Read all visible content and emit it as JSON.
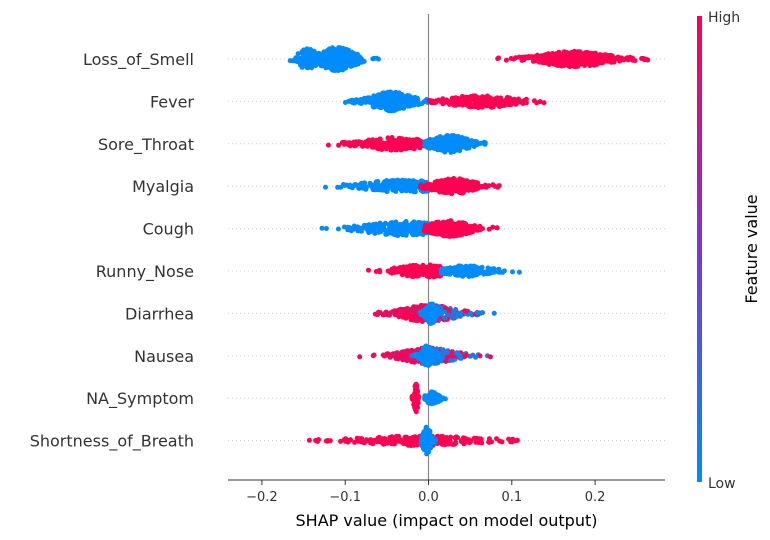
{
  "chart_data": {
    "type": "scatter",
    "subtype": "shap-beeswarm",
    "title": "",
    "xlabel": "SHAP value (impact on model output)",
    "ylabel": "",
    "xlim": [
      -0.24,
      0.27
    ],
    "xticks": [
      -0.2,
      -0.1,
      0.0,
      0.1,
      0.2
    ],
    "xtick_labels": [
      "−0.2",
      "−0.1",
      "0.0",
      "0.1",
      "0.2"
    ],
    "grid": false,
    "zero_line": true,
    "colorbar": {
      "label": "Feature value",
      "high_label": "High",
      "low_label": "Low",
      "high_color": "#ff0052",
      "low_color": "#008bfb"
    },
    "features": [
      {
        "name": "Loss_of_Smell",
        "groups": [
          {
            "level": "low",
            "center": -0.11,
            "sd": 0.018,
            "min": -0.22,
            "max": -0.06,
            "weight": 0.7,
            "n": 380
          },
          {
            "level": "low",
            "center": -0.145,
            "sd": 0.01,
            "min": -0.18,
            "max": -0.12,
            "weight": 0.6,
            "n": 90
          },
          {
            "level": "high",
            "center": 0.175,
            "sd": 0.032,
            "min": 0.07,
            "max": 0.265,
            "weight": 0.45,
            "n": 420
          }
        ]
      },
      {
        "name": "Fever",
        "groups": [
          {
            "level": "low",
            "center": -0.045,
            "sd": 0.02,
            "min": -0.135,
            "max": 0.0,
            "weight": 0.55,
            "n": 260
          },
          {
            "level": "high",
            "center": 0.065,
            "sd": 0.03,
            "min": 0.0,
            "max": 0.16,
            "weight": 0.35,
            "n": 230
          }
        ]
      },
      {
        "name": "Sore_Throat",
        "groups": [
          {
            "level": "high",
            "center": -0.04,
            "sd": 0.03,
            "min": -0.135,
            "max": 0.02,
            "weight": 0.35,
            "n": 210
          },
          {
            "level": "low",
            "center": 0.025,
            "sd": 0.018,
            "min": -0.005,
            "max": 0.08,
            "weight": 0.5,
            "n": 240
          }
        ]
      },
      {
        "name": "Myalgia",
        "groups": [
          {
            "level": "low",
            "center": -0.03,
            "sd": 0.035,
            "min": -0.15,
            "max": 0.0,
            "weight": 0.35,
            "n": 220
          },
          {
            "level": "high",
            "center": 0.03,
            "sd": 0.02,
            "min": -0.01,
            "max": 0.09,
            "weight": 0.45,
            "n": 240
          }
        ]
      },
      {
        "name": "Cough",
        "groups": [
          {
            "level": "low",
            "center": -0.03,
            "sd": 0.035,
            "min": -0.19,
            "max": 0.0,
            "weight": 0.4,
            "n": 230
          },
          {
            "level": "high",
            "center": 0.025,
            "sd": 0.02,
            "min": -0.005,
            "max": 0.085,
            "weight": 0.45,
            "n": 250
          }
        ]
      },
      {
        "name": "Runny_Nose",
        "groups": [
          {
            "level": "high",
            "center": -0.005,
            "sd": 0.025,
            "min": -0.11,
            "max": 0.015,
            "weight": 0.35,
            "n": 220
          },
          {
            "level": "low",
            "center": 0.045,
            "sd": 0.02,
            "min": 0.015,
            "max": 0.11,
            "weight": 0.3,
            "n": 170
          }
        ]
      },
      {
        "name": "Diarrhea",
        "groups": [
          {
            "level": "mixed",
            "center": 0.0,
            "sd": 0.025,
            "min": -0.15,
            "max": 0.09,
            "weight": 0.5,
            "n": 300
          },
          {
            "level": "low",
            "center": 0.003,
            "sd": 0.005,
            "min": -0.01,
            "max": 0.015,
            "weight": 0.6,
            "n": 120
          }
        ]
      },
      {
        "name": "Nausea",
        "groups": [
          {
            "level": "mixed",
            "center": 0.0,
            "sd": 0.025,
            "min": -0.17,
            "max": 0.08,
            "weight": 0.45,
            "n": 300
          },
          {
            "level": "low",
            "center": -0.002,
            "sd": 0.006,
            "min": -0.02,
            "max": 0.015,
            "weight": 0.6,
            "n": 140
          }
        ]
      },
      {
        "name": "NA_Symptom",
        "groups": [
          {
            "level": "high",
            "center": -0.015,
            "sd": 0.002,
            "min": -0.02,
            "max": -0.01,
            "weight": 0.9,
            "n": 60
          },
          {
            "level": "low",
            "center": 0.005,
            "sd": 0.006,
            "min": -0.005,
            "max": 0.025,
            "weight": 0.35,
            "n": 100
          }
        ]
      },
      {
        "name": "Shortness_of_Breath",
        "groups": [
          {
            "level": "high",
            "center": -0.01,
            "sd": 0.05,
            "min": -0.195,
            "max": 0.11,
            "weight": 0.25,
            "n": 260
          },
          {
            "level": "low",
            "center": -0.002,
            "sd": 0.004,
            "min": -0.01,
            "max": 0.01,
            "weight": 0.85,
            "n": 120
          }
        ]
      }
    ]
  }
}
